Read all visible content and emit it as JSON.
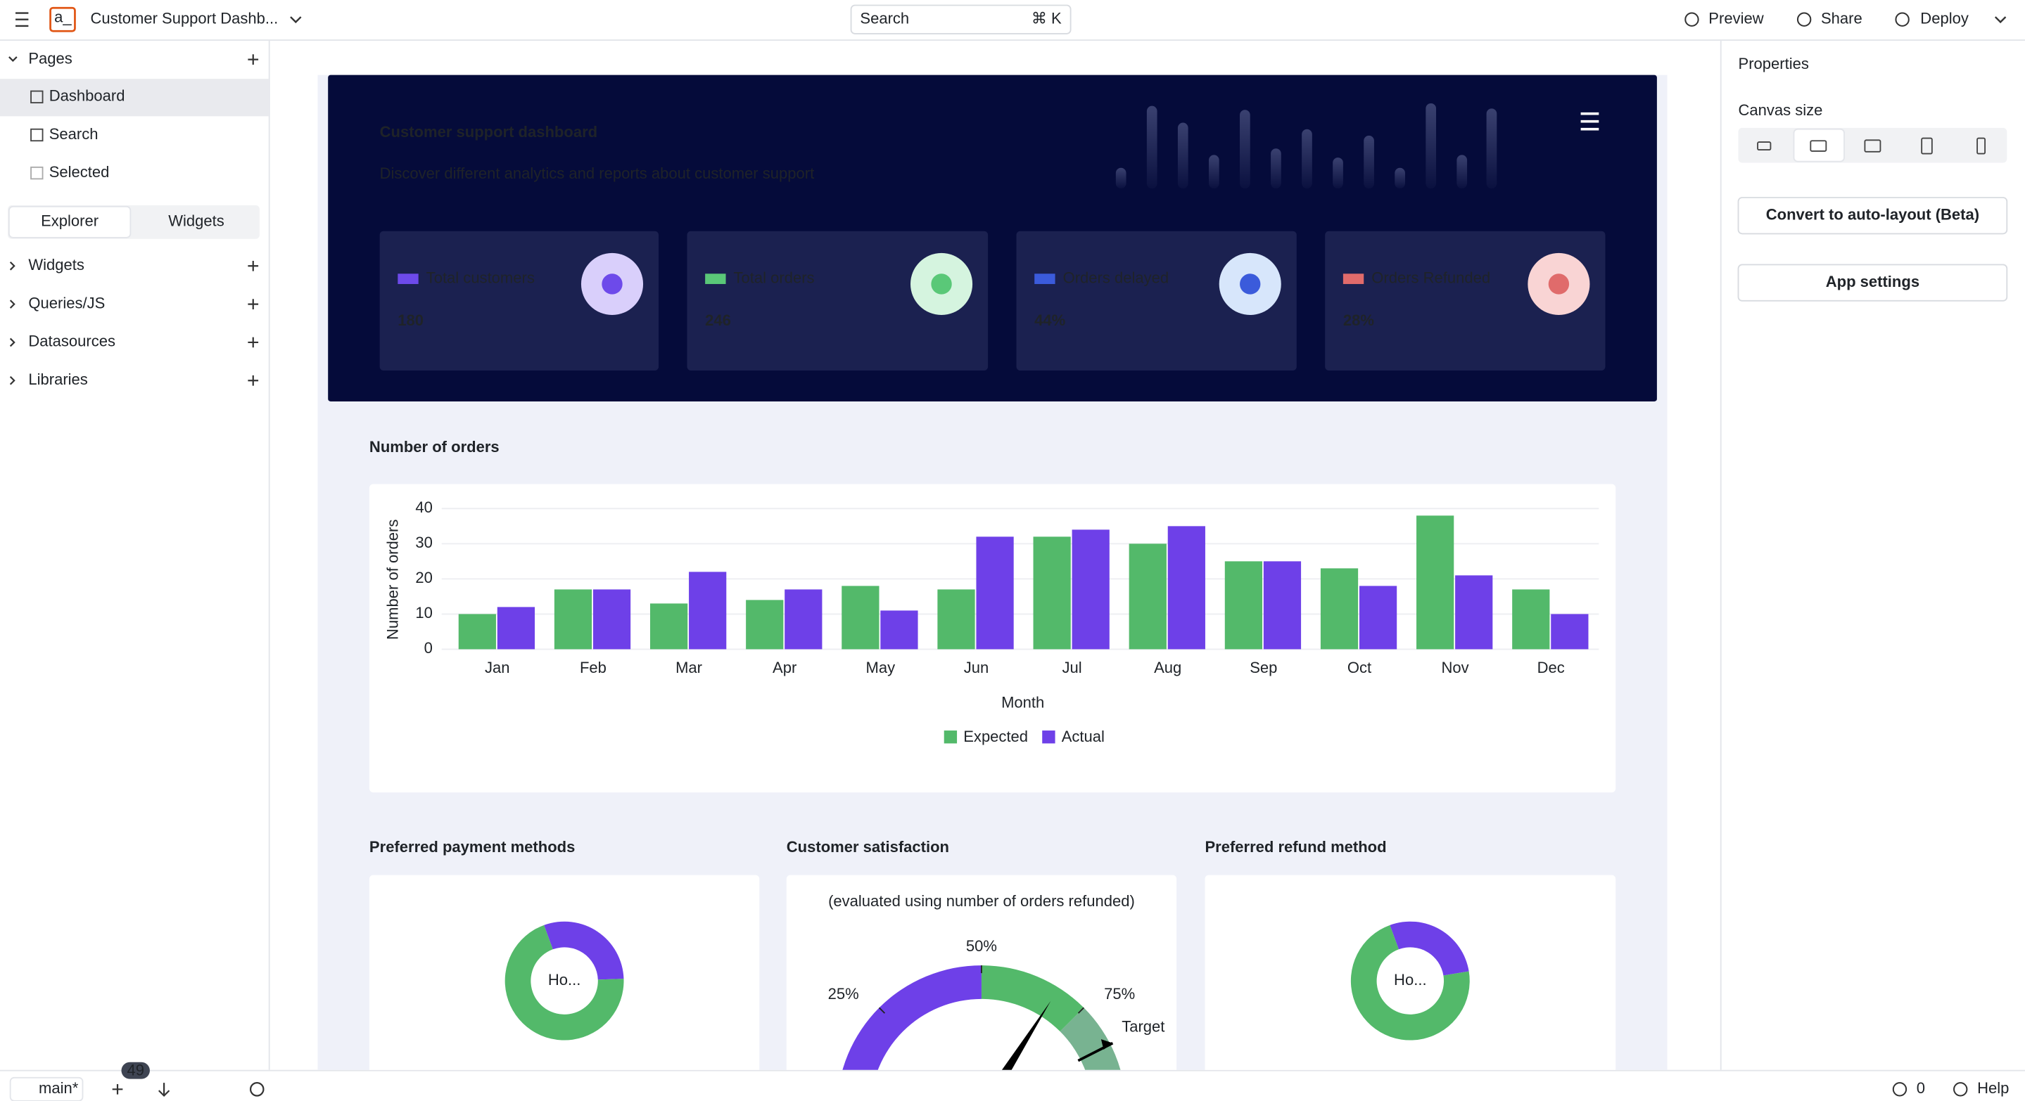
{
  "app": {
    "name": "Customer Support Dashb...",
    "search": "Search",
    "search_shortcut": "⌘ K",
    "actions": [
      "Preview",
      "Share",
      "Deploy"
    ]
  },
  "sidebar": {
    "pages_title": "Pages",
    "pages": [
      "Dashboard",
      "Search",
      "Selected"
    ],
    "tabs": [
      "Explorer",
      "Widgets"
    ],
    "sections": [
      "Widgets",
      "Queries/JS",
      "Datasources",
      "Libraries"
    ]
  },
  "properties": {
    "title": "Properties",
    "canvas_size": "Canvas size",
    "buttons": [
      "Convert to auto-layout (Beta)",
      "App settings"
    ]
  },
  "footer": {
    "branch": "main*",
    "badge": "49",
    "errors": "0",
    "help": "Help"
  },
  "header": {
    "title": "Customer support dashboard",
    "subtitle": "Discover different analytics and reports about customer support"
  },
  "stats": [
    {
      "label": "Total customers",
      "value": "180",
      "color": "#6d4aea",
      "icon_bg": "#d9cffb"
    },
    {
      "label": "Total orders",
      "value": "246",
      "color": "#5ac878",
      "icon_bg": "#d5f4df"
    },
    {
      "label": "Orders delayed",
      "value": "44%",
      "color": "#3b5bdb",
      "icon_bg": "#d7e6fb"
    },
    {
      "label": "Orders Refunded",
      "value": "28%",
      "color": "#e06b6b",
      "icon_bg": "#f9d4d4"
    }
  ],
  "orders_chart": {
    "type": "bar",
    "title": "Number of orders",
    "x_label": "Month",
    "y_label": "Number of orders",
    "categories": [
      "Jan",
      "Feb",
      "Mar",
      "Apr",
      "May",
      "Jun",
      "Jul",
      "Aug",
      "Sep",
      "Oct",
      "Nov",
      "Dec"
    ],
    "series": [
      {
        "name": "Expected",
        "color": "#53b96a",
        "values": [
          10,
          17,
          13,
          14,
          18,
          17,
          32,
          30,
          25,
          23,
          38,
          17
        ]
      },
      {
        "name": "Actual",
        "color": "#6e40e8",
        "values": [
          12,
          17,
          22,
          17,
          11,
          32,
          34,
          35,
          25,
          18,
          21,
          10
        ]
      }
    ],
    "ylim": [
      0,
      40
    ],
    "yticks": [
      0,
      10,
      20,
      30,
      40
    ],
    "grid": true
  },
  "payment_chart": {
    "type": "pie",
    "title": "Preferred payment methods",
    "center_label": "Ho...",
    "values": [
      30,
      70
    ],
    "colors": [
      "#6e40e8",
      "#53b96a"
    ]
  },
  "satisfaction_chart": {
    "type": "gauge",
    "title": "Customer satisfaction",
    "subtitle": "(evaluated using number of orders refunded)",
    "range": [
      0,
      100
    ],
    "ticks": [
      {
        "value": 25,
        "label": "25%"
      },
      {
        "value": 50,
        "label": "50%"
      },
      {
        "value": 75,
        "label": "75%"
      }
    ],
    "band_colors": [
      "#6e40e8",
      "#53b96a",
      "#78b391"
    ],
    "value": 68,
    "target": 85,
    "target_label": "Target"
  },
  "refund_chart": {
    "type": "pie",
    "title": "Preferred refund method",
    "center_label": "Ho...",
    "values": [
      28,
      72
    ],
    "colors": [
      "#6e40e8",
      "#53b96a"
    ]
  }
}
